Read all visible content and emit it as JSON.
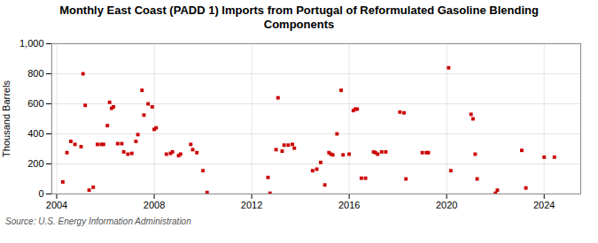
{
  "chart_data": {
    "type": "scatter",
    "title": "Monthly East Coast (PADD 1) Imports from Portugal of Reformulated Gasoline Blending\nComponents",
    "ylabel": "Thousand Barrels",
    "source": "Source: U.S. Energy Information Administration",
    "color": "#cc0000",
    "marker": "square",
    "grid": true,
    "xlim": [
      2003.8,
      2025.5
    ],
    "xticks": [
      2004,
      2008,
      2012,
      2016,
      2020,
      2024
    ],
    "ylim": [
      0,
      1000
    ],
    "yticks": [
      0,
      200,
      400,
      600,
      800,
      {
        "value": 1000,
        "label": "1,000"
      }
    ],
    "x": [
      2004.25,
      2004.42,
      2004.58,
      2004.75,
      2005.0,
      2005.08,
      2005.17,
      2005.33,
      2005.5,
      2005.67,
      2005.83,
      2005.92,
      2006.08,
      2006.17,
      2006.25,
      2006.33,
      2006.5,
      2006.67,
      2006.75,
      2006.92,
      2007.08,
      2007.25,
      2007.33,
      2007.5,
      2007.58,
      2007.75,
      2007.92,
      2008.0,
      2008.08,
      2008.5,
      2008.67,
      2008.75,
      2009.0,
      2009.08,
      2009.5,
      2009.58,
      2009.75,
      2010.0,
      2010.17,
      2012.67,
      2012.75,
      2013.0,
      2013.08,
      2013.25,
      2013.33,
      2013.5,
      2013.67,
      2013.75,
      2014.5,
      2014.67,
      2014.83,
      2015.0,
      2015.17,
      2015.25,
      2015.33,
      2015.5,
      2015.67,
      2015.75,
      2016.0,
      2016.17,
      2016.25,
      2016.33,
      2016.5,
      2016.67,
      2017.0,
      2017.08,
      2017.17,
      2017.33,
      2017.5,
      2018.08,
      2018.25,
      2018.33,
      2019.0,
      2019.17,
      2019.25,
      2020.08,
      2020.17,
      2021.0,
      2021.08,
      2021.17,
      2021.25,
      2022.0,
      2022.08,
      2023.08,
      2023.25,
      2024.0,
      2024.42
    ],
    "values": [
      80,
      275,
      350,
      330,
      315,
      800,
      590,
      25,
      45,
      330,
      330,
      330,
      455,
      610,
      570,
      580,
      335,
      335,
      280,
      265,
      270,
      350,
      395,
      690,
      525,
      600,
      580,
      430,
      440,
      265,
      270,
      280,
      255,
      265,
      330,
      295,
      275,
      155,
      10,
      110,
      5,
      295,
      640,
      285,
      325,
      325,
      330,
      305,
      155,
      165,
      210,
      60,
      275,
      265,
      260,
      400,
      690,
      260,
      265,
      555,
      565,
      565,
      105,
      105,
      280,
      275,
      265,
      280,
      280,
      545,
      540,
      100,
      275,
      275,
      275,
      840,
      155,
      530,
      500,
      265,
      100,
      5,
      25,
      290,
      40,
      245,
      245
    ]
  }
}
